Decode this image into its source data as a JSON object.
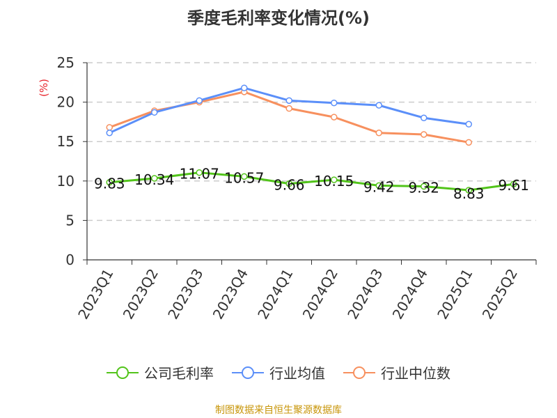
{
  "chart_data": {
    "type": "line",
    "title": "季度毛利率变化情况(%)",
    "ylabel": "(%)",
    "ylim": [
      0,
      25
    ],
    "yticks": [
      0,
      5,
      10,
      15,
      20,
      25
    ],
    "grid": true,
    "legend_position": "bottom",
    "categories": [
      "2023Q1",
      "2023Q2",
      "2023Q3",
      "2023Q4",
      "2024Q1",
      "2024Q2",
      "2024Q3",
      "2024Q4",
      "2025Q1",
      "2025Q2"
    ],
    "series": [
      {
        "name": "公司毛利率",
        "color": "#52c41a",
        "labels": true,
        "values": [
          9.83,
          10.34,
          11.07,
          10.57,
          9.66,
          10.15,
          9.42,
          9.32,
          8.83,
          9.61
        ]
      },
      {
        "name": "行业均值",
        "color": "#5b8ff9",
        "values": [
          16.1,
          18.7,
          20.2,
          21.8,
          20.2,
          19.9,
          19.6,
          18.0,
          17.2,
          null
        ]
      },
      {
        "name": "行业中位数",
        "color": "#f7905e",
        "values": [
          16.8,
          18.9,
          20.0,
          21.3,
          19.2,
          18.1,
          16.1,
          15.9,
          14.9,
          null
        ]
      }
    ]
  },
  "source": "制图数据来自恒生聚源数据库"
}
